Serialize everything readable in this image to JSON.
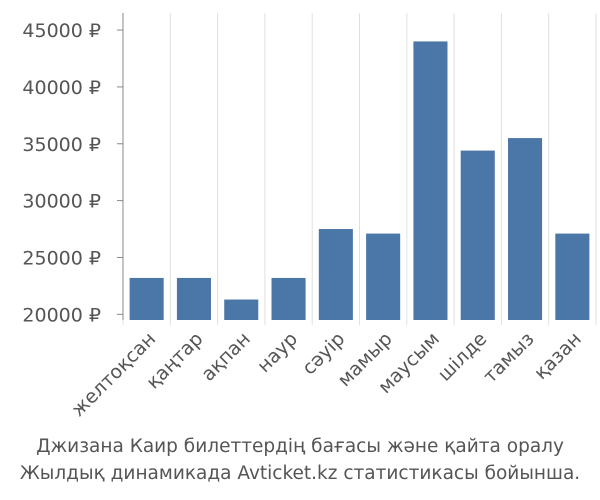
{
  "chart_data": {
    "type": "bar",
    "title": "",
    "xlabel": "",
    "ylabel": "",
    "categories": [
      "желтоқсан",
      "қаңтар",
      "ақпан",
      "наур",
      "сәуір",
      "мамыр",
      "маусым",
      "шілде",
      "тамыз",
      "қазан"
    ],
    "values": [
      23200,
      23200,
      21300,
      23200,
      27500,
      27100,
      44000,
      34400,
      35500,
      27100
    ],
    "y_tick_labels": [
      "20000 ₽",
      "25000 ₽",
      "30000 ₽",
      "35000 ₽",
      "40000 ₽",
      "45000 ₽"
    ],
    "y_ticks": [
      20000,
      25000,
      30000,
      35000,
      40000,
      45000
    ],
    "ylim": [
      19500,
      46500
    ],
    "grid": "vertical",
    "bar_color": "#4a76a8",
    "grid_color": "#e0e0e0",
    "axis_color": "#888888"
  },
  "caption": {
    "line1": "Джизана Каир билеттердің бағасы және қайта оралу",
    "line2": "Жылдық динамикада Avticket.kz статистикасы бойынша."
  }
}
